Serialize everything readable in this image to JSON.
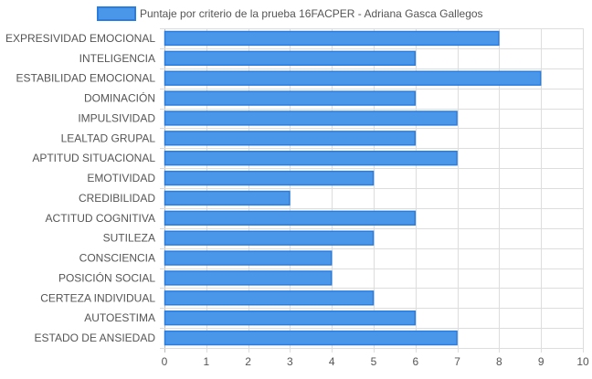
{
  "chart_data": {
    "type": "bar",
    "orientation": "horizontal",
    "legend": {
      "label": "Puntaje por criterio de la prueba 16FACPER - Adriana Gasca Gallegos",
      "position": "top"
    },
    "categories": [
      "EXPRESIVIDAD EMOCIONAL",
      "INTELIGENCIA",
      "ESTABILIDAD EMOCIONAL",
      "DOMINACIÓN",
      "IMPULSIVIDAD",
      "LEALTAD GRUPAL",
      "APTITUD SITUACIONAL",
      "EMOTIVIDAD",
      "CREDIBILIDAD",
      "ACTITUD COGNITIVA",
      "SUTILEZA",
      "CONSCIENCIA",
      "POSICIÓN SOCIAL",
      "CERTEZA INDIVIDUAL",
      "AUTOESTIMA",
      "ESTADO DE ANSIEDAD"
    ],
    "series": [
      {
        "name": "Puntaje por criterio de la prueba 16FACPER - Adriana Gasca Gallegos",
        "values": [
          8,
          6,
          9,
          6,
          7,
          6,
          7,
          5,
          3,
          6,
          5,
          4,
          4,
          5,
          6,
          7
        ]
      }
    ],
    "xlim": [
      0,
      10
    ],
    "x_ticks": [
      "0",
      "1",
      "2",
      "3",
      "4",
      "5",
      "6",
      "7",
      "8",
      "9",
      "10"
    ],
    "grid": true,
    "colors": {
      "bar_fill": "#4a97e9",
      "bar_stroke": "#2a7de0",
      "grid": "#dddddd",
      "text": "#555555"
    }
  }
}
